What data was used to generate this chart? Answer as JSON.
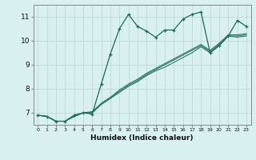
{
  "title": "",
  "xlabel": "Humidex (Indice chaleur)",
  "ylabel": "",
  "bg_color": "#d8f0f0",
  "grid_color": "#c0d8d8",
  "line_color": "#1a6b5a",
  "xlim": [
    -0.5,
    23.5
  ],
  "ylim": [
    6.5,
    11.5
  ],
  "yticks": [
    7,
    8,
    9,
    10,
    11
  ],
  "xticks": [
    0,
    1,
    2,
    3,
    4,
    5,
    6,
    7,
    8,
    9,
    10,
    11,
    12,
    13,
    14,
    15,
    16,
    17,
    18,
    19,
    20,
    21,
    22,
    23
  ],
  "series1_x": [
    0,
    1,
    2,
    3,
    4,
    5,
    6,
    7,
    8,
    9,
    10,
    11,
    12,
    13,
    14,
    15,
    16,
    17,
    18,
    19,
    20,
    21,
    22,
    23
  ],
  "series1_y": [
    6.9,
    6.85,
    6.65,
    6.65,
    6.9,
    7.0,
    6.95,
    8.2,
    9.45,
    10.5,
    11.1,
    10.6,
    10.4,
    10.15,
    10.45,
    10.45,
    10.9,
    11.1,
    11.2,
    9.5,
    9.8,
    10.2,
    10.85,
    10.6
  ],
  "series2_x": [
    0,
    1,
    2,
    3,
    4,
    5,
    6,
    7,
    8,
    9,
    10,
    11,
    12,
    13,
    14,
    15,
    16,
    17,
    18,
    19,
    20,
    21,
    22,
    23
  ],
  "series2_y": [
    6.9,
    6.85,
    6.65,
    6.65,
    6.85,
    7.0,
    7.0,
    7.35,
    7.6,
    7.85,
    8.1,
    8.3,
    8.55,
    8.75,
    8.9,
    9.1,
    9.3,
    9.5,
    9.75,
    9.5,
    9.8,
    10.2,
    10.15,
    10.2
  ],
  "series3_x": [
    0,
    1,
    2,
    3,
    4,
    5,
    6,
    7,
    8,
    9,
    10,
    11,
    12,
    13,
    14,
    15,
    16,
    17,
    18,
    19,
    20,
    21,
    22,
    23
  ],
  "series3_y": [
    6.9,
    6.85,
    6.65,
    6.65,
    6.85,
    7.0,
    7.0,
    7.35,
    7.6,
    7.9,
    8.15,
    8.35,
    8.6,
    8.8,
    9.0,
    9.2,
    9.4,
    9.6,
    9.8,
    9.55,
    9.85,
    10.2,
    10.2,
    10.25
  ],
  "series4_x": [
    0,
    1,
    2,
    3,
    4,
    5,
    6,
    7,
    8,
    9,
    10,
    11,
    12,
    13,
    14,
    15,
    16,
    17,
    18,
    19,
    20,
    21,
    22,
    23
  ],
  "series4_y": [
    6.9,
    6.85,
    6.65,
    6.65,
    6.85,
    7.0,
    7.05,
    7.4,
    7.65,
    7.95,
    8.2,
    8.4,
    8.65,
    8.85,
    9.05,
    9.25,
    9.45,
    9.65,
    9.85,
    9.6,
    9.9,
    10.25,
    10.25,
    10.3
  ],
  "tick_fontsize_x": 4.5,
  "tick_fontsize_y": 6.5,
  "xlabel_fontsize": 6.5
}
